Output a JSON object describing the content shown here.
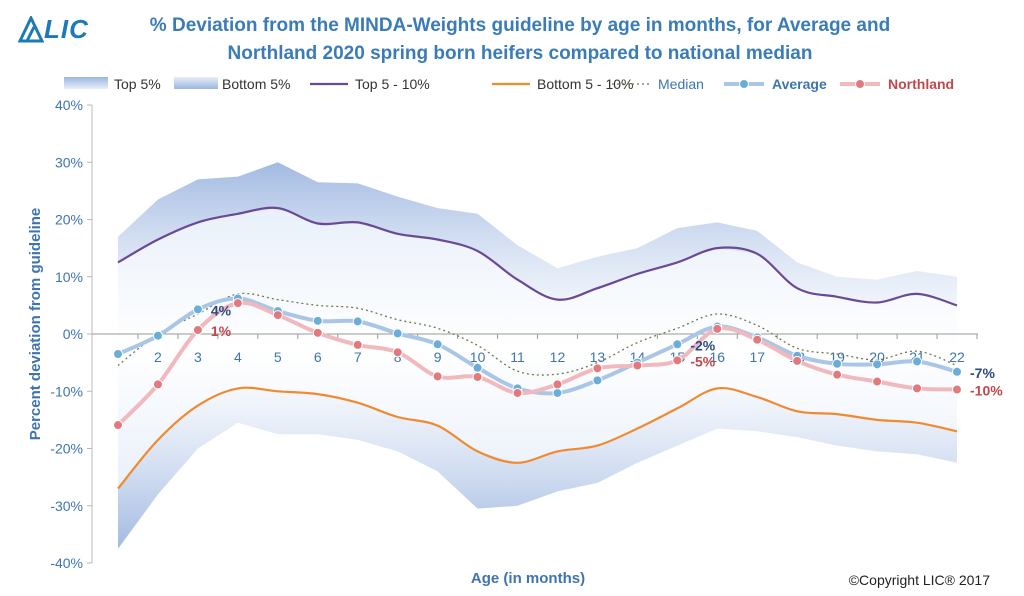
{
  "logo": {
    "text": "LIC",
    "color": "#1d79b8"
  },
  "copyright": "©Copyright LIC® 2017",
  "chart_data": {
    "type": "line",
    "title": [
      "% Deviation from the MINDA-Weights guideline by age in months, for Average and",
      "Northland  2020 spring born heifers compared to national median"
    ],
    "xlabel": "Age (in months)",
    "ylabel": "Percent deviation from guideline",
    "ylim": [
      -40,
      40
    ],
    "yticks": [
      -40,
      -30,
      -20,
      -10,
      0,
      10,
      20,
      30,
      40
    ],
    "ytick_labels": [
      "-40%",
      "-30%",
      "-20%",
      "-10%",
      "0%",
      "10%",
      "20%",
      "30%",
      "40%"
    ],
    "x": [
      1,
      2,
      3,
      4,
      5,
      6,
      7,
      8,
      9,
      10,
      11,
      12,
      13,
      14,
      15,
      16,
      17,
      18,
      19,
      20,
      21,
      22
    ],
    "xtick_labels": [
      "",
      "2",
      "3",
      "4",
      "5",
      "6",
      "7",
      "8",
      "9",
      "10",
      "11",
      "12",
      "13",
      "14",
      "15",
      "16",
      "17",
      "18",
      "19",
      "20",
      "21",
      "22"
    ],
    "legend_position": "top",
    "bands": [
      {
        "name": "Top 5%",
        "color": "#9db6e0",
        "lower": [
          12.5,
          16.5,
          19.5,
          21,
          22,
          19.3,
          19.5,
          17.5,
          16.5,
          14.5,
          9.5,
          6,
          8,
          10.5,
          12.5,
          15,
          14,
          8,
          6.5,
          5.5,
          7,
          5
        ],
        "upper": [
          17,
          23.5,
          27,
          27.5,
          30,
          26.5,
          26.3,
          24,
          22,
          21,
          15.5,
          11.5,
          13.5,
          15,
          18.5,
          19.5,
          18,
          12.5,
          10,
          9.5,
          11,
          10
        ]
      },
      {
        "name": "Bottom 5%",
        "color": "#9db6e0",
        "lower": [
          -37.5,
          -28,
          -20,
          -15.5,
          -17.5,
          -17.5,
          -18.5,
          -20.5,
          -24,
          -30.5,
          -30,
          -27.5,
          -26,
          -22.5,
          -19.5,
          -16.5,
          -17,
          -18,
          -19.5,
          -20.5,
          -21,
          -22.5
        ],
        "upper": [
          -27,
          -18.5,
          -12.5,
          -9.5,
          -10,
          -10.5,
          -12,
          -14.5,
          -16,
          -20.5,
          -22.5,
          -20.5,
          -19.5,
          -16.5,
          -13,
          -9.5,
          -11,
          -13.5,
          -14,
          -15,
          -15.5,
          -17
        ]
      }
    ],
    "series": [
      {
        "name": "Top 5 - 10%",
        "color": "#6a4a96",
        "style": "solid",
        "values": [
          12.5,
          16.5,
          19.5,
          21,
          22,
          19.3,
          19.5,
          17.5,
          16.5,
          14.5,
          9.5,
          6,
          8,
          10.5,
          12.5,
          15,
          14,
          8,
          6.5,
          5.5,
          7,
          5
        ]
      },
      {
        "name": "Bottom 5 - 10%",
        "color": "#f08a30",
        "style": "solid",
        "values": [
          -27,
          -18.5,
          -12.5,
          -9.5,
          -10,
          -10.5,
          -12,
          -14.5,
          -16,
          -20.5,
          -22.5,
          -20.5,
          -19.5,
          -16.5,
          -13,
          -9.5,
          -11,
          -13.5,
          -14,
          -15,
          -15.5,
          -17
        ]
      },
      {
        "name": "Median",
        "color": "#6f7a4a",
        "style": "dotted",
        "values": [
          -5.5,
          0,
          3.5,
          7,
          6,
          5,
          4.5,
          2.5,
          1,
          -2,
          -6.5,
          -7,
          -5,
          -1.5,
          1,
          3.5,
          1.5,
          -2.5,
          -3.5,
          -4.5,
          -3,
          -5.5
        ]
      },
      {
        "name": "Average",
        "color": "#a9c6e6",
        "marker": "#6aaed8",
        "style": "marker",
        "values": [
          -3.5,
          -0.3,
          4.3,
          6.2,
          4,
          2.3,
          2.2,
          0.1,
          -1.8,
          -5.9,
          -9.5,
          -10.3,
          -8.1,
          -5,
          -1.8,
          1.3,
          -0.6,
          -3.8,
          -5.2,
          -5.3,
          -4.8,
          -6.6
        ]
      },
      {
        "name": "Northland",
        "color": "#f1b8bd",
        "marker": "#e07a7f",
        "style": "marker",
        "values": [
          -15.9,
          -8.8,
          0.7,
          5.4,
          3.3,
          0.2,
          -1.9,
          -3.2,
          -7.4,
          -7.5,
          -10.3,
          -8.8,
          -6,
          -5.5,
          -4.6,
          0.9,
          -1,
          -4.7,
          -7.1,
          -8.3,
          -9.5,
          -9.7
        ]
      }
    ],
    "annotations": [
      {
        "text": "4%",
        "x": 3,
        "y": 4.3,
        "color": "#2b4a80"
      },
      {
        "text": "1%",
        "x": 3,
        "y": 0.7,
        "color": "#c0484d"
      },
      {
        "text": "-2%",
        "x": 15,
        "y": -1.8,
        "color": "#2b4a80"
      },
      {
        "text": "-5%",
        "x": 15,
        "y": -4.6,
        "color": "#c0484d"
      },
      {
        "text": "-7%",
        "x": 22,
        "y": -6.6,
        "color": "#2b4a80"
      },
      {
        "text": "-10%",
        "x": 22,
        "y": -9.7,
        "color": "#c0484d"
      }
    ]
  }
}
